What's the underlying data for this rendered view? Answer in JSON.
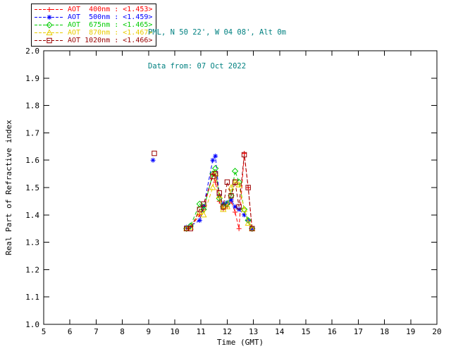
{
  "header": {
    "location": "PML, N 50 22', W 04 08', Alt 0m",
    "date_line": "Data from: 07 Oct 2022",
    "text_color": "#008080"
  },
  "legend": {
    "items": [
      {
        "id": "400nm",
        "label": "AOT  400nm : <1.453>",
        "color": "#ff0000",
        "marker": "plus"
      },
      {
        "id": "500nm",
        "label": "AOT  500nm : <1.459>",
        "color": "#0000ff",
        "marker": "asterisk"
      },
      {
        "id": "675nm",
        "label": "AOT  675nm : <1.465>",
        "color": "#00cc00",
        "marker": "diamond"
      },
      {
        "id": "870nm",
        "label": "AOT  870nm : <1.467>",
        "color": "#e8cc00",
        "marker": "triangle"
      },
      {
        "id": "1020nm",
        "label": "AOT 1020nm : <1.466>",
        "color": "#990000",
        "marker": "square"
      }
    ]
  },
  "chart_data": {
    "type": "line",
    "title": "",
    "xlabel": "Time (GMT)",
    "ylabel": "Real Part of Refractive index",
    "xlim": [
      5,
      20
    ],
    "ylim": [
      1.0,
      2.0
    ],
    "xticks": [
      5,
      6,
      7,
      8,
      9,
      10,
      11,
      12,
      13,
      14,
      15,
      16,
      17,
      18,
      19,
      20
    ],
    "xtick_labels": [
      "5",
      "6",
      "7",
      "8",
      "9",
      "10",
      "11",
      "12",
      "13",
      "14",
      "15",
      "16",
      "17",
      "18",
      "19",
      "20"
    ],
    "yticks": [
      1.0,
      1.1,
      1.2,
      1.3,
      1.4,
      1.5,
      1.6,
      1.7,
      1.8,
      1.9,
      2.0
    ],
    "ytick_labels": [
      "1.0",
      "1.1",
      "1.2",
      "1.3",
      "1.4",
      "1.5",
      "1.6",
      "1.7",
      "1.8",
      "1.9",
      "2.0"
    ],
    "grid": false,
    "legend_position": "top-left",
    "line_style": "dashed",
    "series": [
      {
        "name": "AOT 400nm",
        "wavelength_nm": 400,
        "mean_refractive_index": 1.453,
        "color": "#ff0000",
        "marker": "plus",
        "segments": [
          [
            [
              10.45,
              1.35
            ],
            [
              10.6,
              1.355
            ],
            [
              10.95,
              1.4
            ],
            [
              11.1,
              1.42
            ],
            [
              11.45,
              1.55
            ],
            [
              11.55,
              1.52
            ],
            [
              11.7,
              1.45
            ],
            [
              11.85,
              1.42
            ],
            [
              12.0,
              1.43
            ],
            [
              12.15,
              1.45
            ],
            [
              12.3,
              1.41
            ],
            [
              12.45,
              1.35
            ],
            [
              12.65,
              1.625
            ],
            [
              12.8,
              1.5
            ],
            [
              12.95,
              1.35
            ]
          ]
        ]
      },
      {
        "name": "AOT 500nm",
        "wavelength_nm": 500,
        "mean_refractive_index": 1.459,
        "color": "#0000ff",
        "marker": "asterisk",
        "segments": [
          [
            [
              9.17,
              1.6
            ]
          ],
          [
            [
              10.45,
              1.355
            ],
            [
              10.6,
              1.36
            ],
            [
              10.95,
              1.38
            ],
            [
              11.1,
              1.43
            ],
            [
              11.45,
              1.6
            ],
            [
              11.55,
              1.615
            ],
            [
              11.7,
              1.47
            ],
            [
              11.85,
              1.44
            ],
            [
              12.0,
              1.445
            ],
            [
              12.15,
              1.455
            ],
            [
              12.3,
              1.43
            ],
            [
              12.45,
              1.42
            ],
            [
              12.65,
              1.4
            ],
            [
              12.8,
              1.38
            ],
            [
              12.95,
              1.35
            ]
          ]
        ]
      },
      {
        "name": "AOT 675nm",
        "wavelength_nm": 675,
        "mean_refractive_index": 1.465,
        "color": "#00cc00",
        "marker": "diamond",
        "segments": [
          [
            [
              10.45,
              1.35
            ],
            [
              10.6,
              1.36
            ],
            [
              10.95,
              1.44
            ],
            [
              11.1,
              1.42
            ],
            [
              11.45,
              1.55
            ],
            [
              11.55,
              1.57
            ],
            [
              11.7,
              1.46
            ],
            [
              11.85,
              1.43
            ],
            [
              12.0,
              1.44
            ],
            [
              12.15,
              1.47
            ],
            [
              12.3,
              1.56
            ],
            [
              12.45,
              1.52
            ],
            [
              12.65,
              1.42
            ],
            [
              12.8,
              1.38
            ],
            [
              12.95,
              1.35
            ]
          ]
        ]
      },
      {
        "name": "AOT 870nm",
        "wavelength_nm": 870,
        "mean_refractive_index": 1.467,
        "color": "#e8cc00",
        "marker": "triangle",
        "segments": [
          [
            [
              10.45,
              1.35
            ],
            [
              10.6,
              1.355
            ],
            [
              10.95,
              1.41
            ],
            [
              11.1,
              1.4
            ],
            [
              11.45,
              1.5
            ],
            [
              11.55,
              1.55
            ],
            [
              11.7,
              1.47
            ],
            [
              11.85,
              1.42
            ],
            [
              12.0,
              1.43
            ],
            [
              12.15,
              1.5
            ],
            [
              12.3,
              1.52
            ],
            [
              12.45,
              1.51
            ],
            [
              12.65,
              1.42
            ],
            [
              12.8,
              1.37
            ],
            [
              12.95,
              1.35
            ]
          ]
        ]
      },
      {
        "name": "AOT 1020nm",
        "wavelength_nm": 1020,
        "mean_refractive_index": 1.466,
        "color": "#990000",
        "marker": "square",
        "segments": [
          [
            [
              9.22,
              1.625
            ]
          ],
          [
            [
              10.45,
              1.35
            ],
            [
              10.6,
              1.35
            ],
            [
              10.95,
              1.42
            ],
            [
              11.1,
              1.44
            ],
            [
              11.45,
              1.54
            ],
            [
              11.55,
              1.55
            ],
            [
              11.7,
              1.48
            ],
            [
              11.85,
              1.43
            ],
            [
              12.0,
              1.52
            ],
            [
              12.15,
              1.47
            ],
            [
              12.3,
              1.52
            ],
            [
              12.45,
              1.43
            ],
            [
              12.65,
              1.62
            ],
            [
              12.8,
              1.5
            ],
            [
              12.95,
              1.35
            ]
          ]
        ]
      }
    ]
  }
}
